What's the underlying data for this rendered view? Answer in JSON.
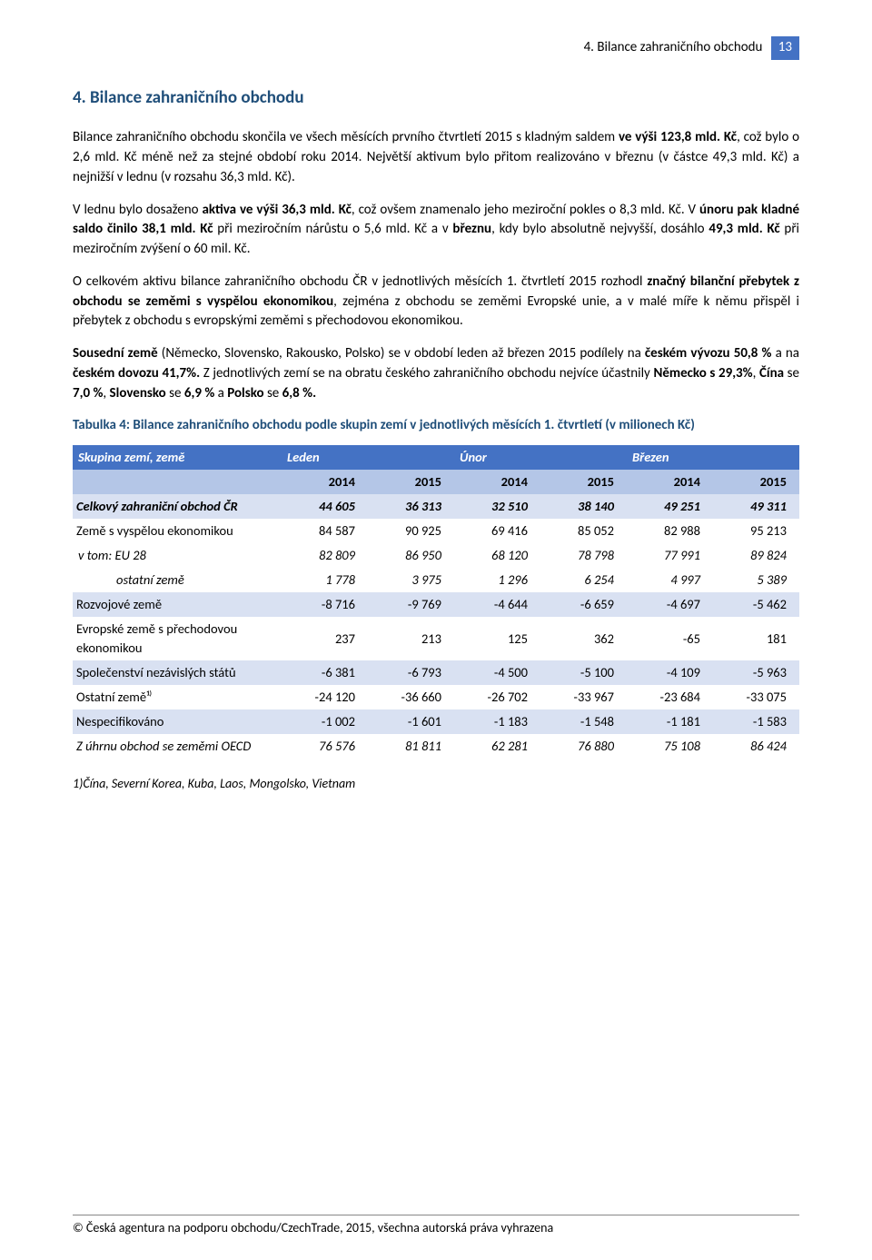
{
  "header": {
    "running_title": "4. Bilance zahraničního obchodu",
    "page_number": "13"
  },
  "section": {
    "title": "4. Bilance zahraničního obchodu"
  },
  "paragraphs": {
    "p1_a": "Bilance zahraničního obchodu skončila ve všech měsících prvního čtvrtletí 2015 s kladným saldem ",
    "p1_b": "ve výši 123,8 mld. Kč",
    "p1_c": ", což bylo o 2,6 mld. Kč méně než za stejné období roku 2014. Největší aktivum bylo přitom realizováno v březnu (v částce 49,3 mld. Kč) a nejnižší v lednu (v rozsahu 36,3 mld. Kč).",
    "p2_a": "V lednu bylo dosaženo ",
    "p2_b": "aktiva ve výši 36,3 mld. Kč",
    "p2_c": ", což ovšem znamenalo jeho meziroční pokles o 8,3 mld. Kč. V ",
    "p2_d": "únoru pak kladné saldo činilo 38,1 mld. Kč",
    "p2_e": " při meziročním nárůstu o 5,6 mld. Kč a v ",
    "p2_f": "březnu",
    "p2_g": ", kdy bylo absolutně nejvyšší, dosáhlo ",
    "p2_h": "49,3 mld. Kč",
    "p2_i": " při meziročním zvýšení o 60 mil. Kč.",
    "p3_a": "O celkovém aktivu bilance zahraničního obchodu ČR v jednotlivých měsících 1. čtvrtletí 2015 rozhodl ",
    "p3_b": "značný bilanční přebytek z obchodu se zeměmi s vyspělou ekonomikou",
    "p3_c": ", zejména z obchodu se zeměmi Evropské unie, a v malé míře k němu přispěl i přebytek z obchodu s evropskými zeměmi s přechodovou ekonomikou.",
    "p4_a": "Sousední země",
    "p4_b": " (Německo, Slovensko, Rakousko, Polsko) se v období leden až březen 2015 podílely na ",
    "p4_c": "českém vývozu 50,8 %",
    "p4_d": " a na ",
    "p4_e": "českém dovozu 41,7%.",
    "p4_f": " Z jednotlivých zemí se na obratu českého zahraničního obchodu nejvíce účastnily ",
    "p4_g": "Německo s 29,3%",
    "p4_h": ", ",
    "p4_i": "Čína",
    "p4_j": " se ",
    "p4_k": "7,0 %",
    "p4_l": ", ",
    "p4_m": "Slovensko",
    "p4_n": " se ",
    "p4_o": "6,9 %",
    "p4_p": " a ",
    "p4_q": "Polsko",
    "p4_r": " se ",
    "p4_s": "6,8 %.",
    "p4_t": ""
  },
  "table": {
    "title": "Tabulka 4: Bilance zahraničního obchodu podle skupin zemí v jednotlivých měsících 1. čtvrtletí (v milionech Kč)",
    "header1": [
      "Skupina zemí, země",
      "Leden",
      "Únor",
      "Březen"
    ],
    "header2": [
      "",
      "2014",
      "2015",
      "2014",
      "2015",
      "2014",
      "2015"
    ],
    "rows": [
      {
        "shade": true,
        "bold": true,
        "italic": true,
        "label": "Celkový zahraniční obchod ČR",
        "vals": [
          "44 605",
          "36 313",
          "32 510",
          "38 140",
          "49 251",
          "49 311"
        ]
      },
      {
        "shade": false,
        "bold": false,
        "italic": false,
        "label": "Země s vyspělou ekonomikou",
        "vals": [
          "84 587",
          "90 925",
          "69 416",
          "85 052",
          "82 988",
          "95 213"
        ]
      },
      {
        "shade": false,
        "bold": false,
        "italic": true,
        "indent": 1,
        "label": "v tom:   EU 28",
        "vals": [
          "82 809",
          "86 950",
          "68 120",
          "78 798",
          "77 991",
          "89 824"
        ]
      },
      {
        "shade": false,
        "bold": false,
        "italic": true,
        "indent": 2,
        "label": "ostatní země",
        "vals": [
          "1 778",
          "3 975",
          "1 296",
          "6 254",
          "4 997",
          "5 389"
        ]
      },
      {
        "shade": true,
        "bold": false,
        "italic": false,
        "label": "Rozvojové země",
        "vals": [
          "-8 716",
          "-9 769",
          "-4 644",
          "-6 659",
          "-4 697",
          "-5 462"
        ]
      },
      {
        "shade": false,
        "bold": false,
        "italic": false,
        "label": "Evropské země s přechodovou ekonomikou",
        "vals": [
          "237",
          "213",
          "125",
          "362",
          "-65",
          "181"
        ]
      },
      {
        "shade": true,
        "bold": false,
        "italic": false,
        "label": "Společenství nezávislých států",
        "vals": [
          "-6 381",
          "-6 793",
          "-4 500",
          "-5 100",
          "-4 109",
          "-5 963"
        ]
      },
      {
        "shade": false,
        "bold": false,
        "italic": false,
        "label": "Ostatní země¹⁾",
        "vals": [
          "-24 120",
          "-36 660",
          "-26 702",
          "-33 967",
          "-23 684",
          "-33 075"
        ]
      },
      {
        "shade": true,
        "bold": false,
        "italic": false,
        "label": "Nespecifikováno",
        "vals": [
          "-1 002",
          "-1 601",
          "-1 183",
          "-1 548",
          "-1 181",
          "-1 583"
        ]
      },
      {
        "shade": false,
        "bold": false,
        "italic": true,
        "label": "Z úhrnu obchod se zeměmi OECD",
        "vals": [
          "76 576",
          "81 811",
          "62 281",
          "76 880",
          "75 108",
          "86 424"
        ]
      }
    ]
  },
  "footnote": "1)Čína, Severní Korea, Kuba, Laos, Mongolsko, Vietnam",
  "footer": "© Česká agentura na podporu obchodu/CzechTrade, 2015, všechna autorská práva vyhrazena",
  "colors": {
    "heading": "#1f4e79",
    "table_header_bg": "#4472c4",
    "table_sub_bg": "#b4c6e7",
    "table_shade_bg": "#d9e1f2"
  }
}
